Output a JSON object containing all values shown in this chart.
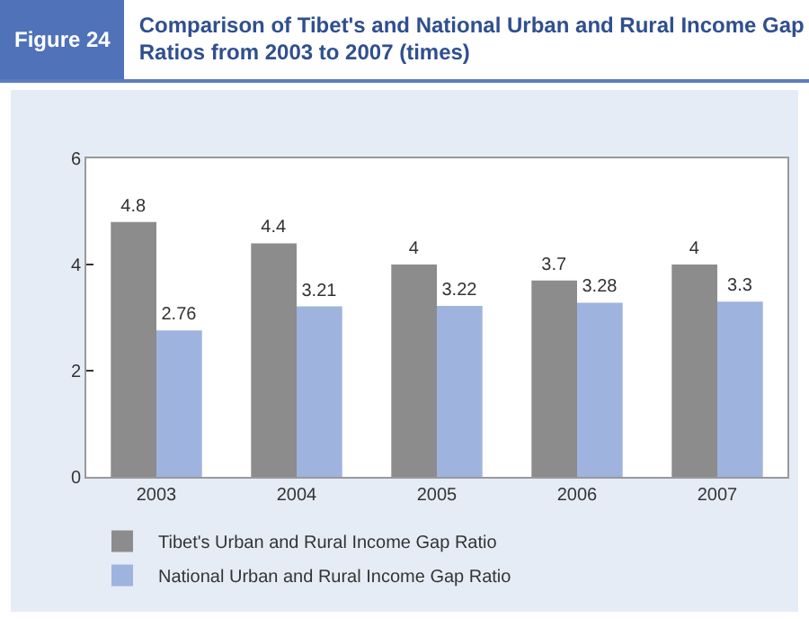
{
  "chart_data": {
    "type": "bar",
    "title": "Comparison of Tibet's and National Urban and Rural Income Gap Ratios from 2003 to 2007 (times)",
    "annotations": [
      "Figure 24"
    ],
    "categories": [
      "2003",
      "2004",
      "2005",
      "2006",
      "2007"
    ],
    "series": [
      {
        "name": "Tibet's Urban and Rural Income Gap Ratio",
        "color": "#8c8c8c",
        "values": [
          4.8,
          4.4,
          4,
          3.7,
          4
        ]
      },
      {
        "name": "National Urban and Rural Income Gap Ratio",
        "color": "#9fb3df",
        "values": [
          2.76,
          3.21,
          3.22,
          3.28,
          3.3
        ]
      }
    ],
    "ylim": [
      0,
      6
    ],
    "yticks": [
      0,
      2,
      4,
      6
    ],
    "grid": false,
    "legend": "bottom",
    "data_labels": true
  }
}
